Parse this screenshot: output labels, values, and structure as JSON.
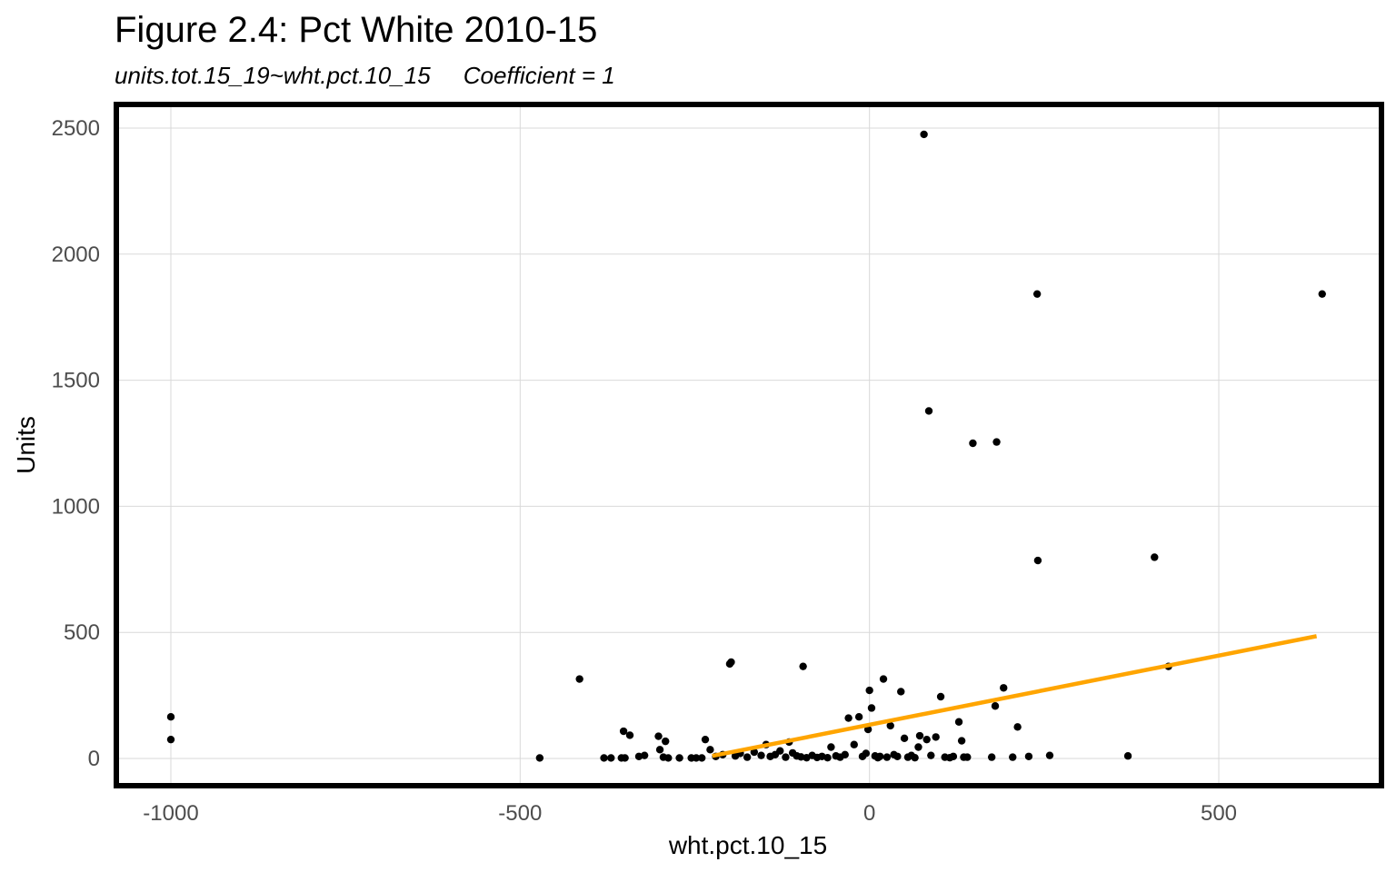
{
  "chart_data": {
    "type": "scatter",
    "title": "Figure 2.4: Pct White 2010-15",
    "subtitle_formula": "units.tot.15_19~wht.pct.10_15",
    "subtitle_coef": "Coefficient = 1",
    "xlabel": "wht.pct.10_15",
    "ylabel": "Units",
    "xlim": [
      -1000,
      650
    ],
    "ylim": [
      0,
      2500
    ],
    "x_ticks": [
      -1000,
      -500,
      0,
      500
    ],
    "x_tick_labels": [
      "-1000",
      "-500",
      "0",
      "500"
    ],
    "y_ticks": [
      0,
      500,
      1000,
      1500,
      2000,
      2500
    ],
    "y_tick_labels": [
      "0",
      "500",
      "1000",
      "1500",
      "2000",
      "2500"
    ],
    "grid": true,
    "point_color": "#000000",
    "fit_color": "#FFA500",
    "frame_color": "#000000",
    "fit_line": {
      "x": [
        -225,
        640
      ],
      "y": [
        10,
        485
      ]
    },
    "points": [
      {
        "x": -1000,
        "y": 165
      },
      {
        "x": -1000,
        "y": 75
      },
      {
        "x": -472,
        "y": 2
      },
      {
        "x": -415,
        "y": 315
      },
      {
        "x": -380,
        "y": 2
      },
      {
        "x": -370,
        "y": 2
      },
      {
        "x": -355,
        "y": 2
      },
      {
        "x": -350,
        "y": 2
      },
      {
        "x": -352,
        "y": 108
      },
      {
        "x": -343,
        "y": 92
      },
      {
        "x": -330,
        "y": 8
      },
      {
        "x": -322,
        "y": 12
      },
      {
        "x": -302,
        "y": 88
      },
      {
        "x": -300,
        "y": 35
      },
      {
        "x": -295,
        "y": 5
      },
      {
        "x": -292,
        "y": 68
      },
      {
        "x": -288,
        "y": 2
      },
      {
        "x": -272,
        "y": 2
      },
      {
        "x": -255,
        "y": 2
      },
      {
        "x": -248,
        "y": 2
      },
      {
        "x": -240,
        "y": 2
      },
      {
        "x": -235,
        "y": 75
      },
      {
        "x": -228,
        "y": 35
      },
      {
        "x": -220,
        "y": 8
      },
      {
        "x": -210,
        "y": 15
      },
      {
        "x": -200,
        "y": 375
      },
      {
        "x": -198,
        "y": 382
      },
      {
        "x": -192,
        "y": 10
      },
      {
        "x": -185,
        "y": 20
      },
      {
        "x": -175,
        "y": 5
      },
      {
        "x": -165,
        "y": 25
      },
      {
        "x": -155,
        "y": 12
      },
      {
        "x": -148,
        "y": 55
      },
      {
        "x": -142,
        "y": 8
      },
      {
        "x": -135,
        "y": 15
      },
      {
        "x": -128,
        "y": 30
      },
      {
        "x": -120,
        "y": 5
      },
      {
        "x": -115,
        "y": 65
      },
      {
        "x": -110,
        "y": 22
      },
      {
        "x": -104,
        "y": 10
      },
      {
        "x": -98,
        "y": 6
      },
      {
        "x": -95,
        "y": 365
      },
      {
        "x": -90,
        "y": 3
      },
      {
        "x": -82,
        "y": 12
      },
      {
        "x": -75,
        "y": 4
      },
      {
        "x": -68,
        "y": 8
      },
      {
        "x": -60,
        "y": 3
      },
      {
        "x": -55,
        "y": 45
      },
      {
        "x": -48,
        "y": 10
      },
      {
        "x": -42,
        "y": 5
      },
      {
        "x": -35,
        "y": 15
      },
      {
        "x": -30,
        "y": 160
      },
      {
        "x": -22,
        "y": 55
      },
      {
        "x": -15,
        "y": 165
      },
      {
        "x": -10,
        "y": 8
      },
      {
        "x": -5,
        "y": 20
      },
      {
        "x": -2,
        "y": 115
      },
      {
        "x": 0,
        "y": 270
      },
      {
        "x": 3,
        "y": 200
      },
      {
        "x": 8,
        "y": 10
      },
      {
        "x": 12,
        "y": 3
      },
      {
        "x": 15,
        "y": 8
      },
      {
        "x": 20,
        "y": 315
      },
      {
        "x": 25,
        "y": 5
      },
      {
        "x": 30,
        "y": 130
      },
      {
        "x": 35,
        "y": 15
      },
      {
        "x": 40,
        "y": 8
      },
      {
        "x": 45,
        "y": 265
      },
      {
        "x": 50,
        "y": 80
      },
      {
        "x": 55,
        "y": 5
      },
      {
        "x": 60,
        "y": 12
      },
      {
        "x": 65,
        "y": 3
      },
      {
        "x": 70,
        "y": 45
      },
      {
        "x": 72,
        "y": 90
      },
      {
        "x": 78,
        "y": 2475
      },
      {
        "x": 82,
        "y": 75
      },
      {
        "x": 85,
        "y": 1378
      },
      {
        "x": 88,
        "y": 12
      },
      {
        "x": 95,
        "y": 85
      },
      {
        "x": 102,
        "y": 245
      },
      {
        "x": 108,
        "y": 5
      },
      {
        "x": 115,
        "y": 3
      },
      {
        "x": 120,
        "y": 8
      },
      {
        "x": 128,
        "y": 145
      },
      {
        "x": 132,
        "y": 70
      },
      {
        "x": 135,
        "y": 5
      },
      {
        "x": 140,
        "y": 5
      },
      {
        "x": 148,
        "y": 1250
      },
      {
        "x": 175,
        "y": 5
      },
      {
        "x": 180,
        "y": 208
      },
      {
        "x": 182,
        "y": 1255
      },
      {
        "x": 192,
        "y": 280
      },
      {
        "x": 205,
        "y": 5
      },
      {
        "x": 212,
        "y": 125
      },
      {
        "x": 228,
        "y": 8
      },
      {
        "x": 240,
        "y": 1842
      },
      {
        "x": 241,
        "y": 785
      },
      {
        "x": 258,
        "y": 12
      },
      {
        "x": 370,
        "y": 10
      },
      {
        "x": 408,
        "y": 798
      },
      {
        "x": 428,
        "y": 365
      },
      {
        "x": 648,
        "y": 1842
      }
    ]
  }
}
